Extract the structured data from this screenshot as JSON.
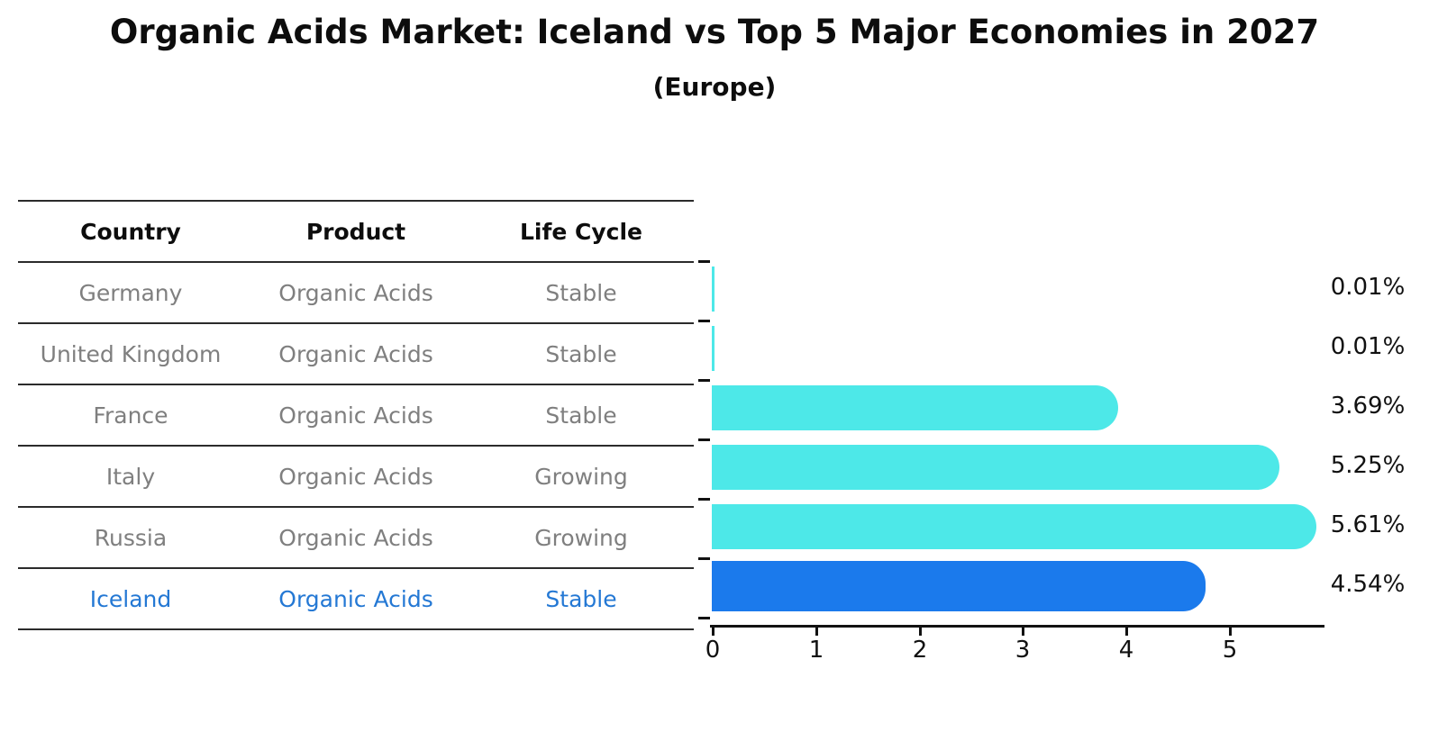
{
  "title": "Organic Acids Market: Iceland vs Top 5 Major Economies in 2027",
  "subtitle": "(Europe)",
  "table": {
    "headers": [
      "Country",
      "Product",
      "Life Cycle"
    ],
    "rows": [
      {
        "country": "Germany",
        "product": "Organic Acids",
        "life_cycle": "Stable",
        "highlight": false
      },
      {
        "country": "United Kingdom",
        "product": "Organic Acids",
        "life_cycle": "Stable",
        "highlight": false
      },
      {
        "country": "France",
        "product": "Organic Acids",
        "life_cycle": "Stable",
        "highlight": false
      },
      {
        "country": "Italy",
        "product": "Organic Acids",
        "life_cycle": "Growing",
        "highlight": false
      },
      {
        "country": "Russia",
        "product": "Organic Acids",
        "life_cycle": "Growing",
        "highlight": false
      },
      {
        "country": "Iceland",
        "product": "Organic Acids",
        "life_cycle": "Stable",
        "highlight": true
      }
    ]
  },
  "chart_data": {
    "type": "bar",
    "orientation": "horizontal",
    "title": "Organic Acids Market: Iceland vs Top 5 Major Economies in 2027",
    "subtitle": "(Europe)",
    "categories": [
      "Germany",
      "United Kingdom",
      "France",
      "Italy",
      "Russia",
      "Iceland"
    ],
    "values": [
      0.01,
      0.01,
      3.69,
      5.25,
      5.61,
      4.54
    ],
    "value_labels": [
      "0.01%",
      "0.01%",
      "3.69%",
      "5.25%",
      "5.61%",
      "4.54%"
    ],
    "highlight_index": 5,
    "highlight_style": "dotted-border",
    "xlabel": "",
    "ylabel": "",
    "xlim": [
      0,
      5.95
    ],
    "xticks": [
      0,
      1,
      2,
      3,
      4,
      5
    ],
    "grid": false,
    "legend": "none"
  },
  "colors": {
    "bar_default": "#4DE8E8",
    "bar_highlight": "#1B7AEC",
    "table_line": "#2b2b2b",
    "table_text": "#7f7f7f",
    "table_header_text": "#0d0d0d",
    "highlight_text": "#2478D4",
    "axis": "#111111",
    "background": "#FFFFFF"
  }
}
